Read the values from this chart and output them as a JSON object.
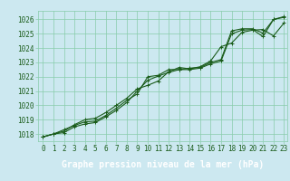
{
  "title": "Graphe pression niveau de la mer (hPa)",
  "background_color": "#cce8f0",
  "plot_bg_color": "#cce8f0",
  "grid_color": "#88ccaa",
  "line_color": "#1a5c1a",
  "title_bg_color": "#2a6b2a",
  "title_text_color": "#ffffff",
  "x_min": -0.5,
  "x_max": 23.3,
  "y_min": 1017.5,
  "y_max": 1026.6,
  "yticks": [
    1018,
    1019,
    1020,
    1021,
    1022,
    1023,
    1024,
    1025,
    1026
  ],
  "xticks": [
    0,
    1,
    2,
    3,
    4,
    5,
    6,
    7,
    8,
    9,
    10,
    11,
    12,
    13,
    14,
    15,
    16,
    17,
    18,
    19,
    20,
    21,
    22,
    23
  ],
  "series1": [
    1017.8,
    1018.0,
    1018.3,
    1018.6,
    1018.85,
    1018.9,
    1019.3,
    1019.8,
    1020.35,
    1020.8,
    1022.0,
    1022.1,
    1022.5,
    1022.5,
    1022.6,
    1022.65,
    1023.0,
    1023.2,
    1025.2,
    1025.35,
    1025.35,
    1025.05,
    1026.0,
    1026.15
  ],
  "series2": [
    1017.8,
    1018.0,
    1018.2,
    1018.65,
    1019.0,
    1019.1,
    1019.5,
    1020.0,
    1020.5,
    1021.15,
    1021.4,
    1021.7,
    1022.35,
    1022.65,
    1022.55,
    1022.7,
    1023.1,
    1024.1,
    1024.35,
    1025.1,
    1025.25,
    1025.3,
    1024.85,
    1025.75
  ],
  "series3": [
    1017.8,
    1018.0,
    1018.1,
    1018.5,
    1018.7,
    1018.8,
    1019.2,
    1019.65,
    1020.2,
    1021.0,
    1021.75,
    1022.05,
    1022.3,
    1022.5,
    1022.5,
    1022.6,
    1022.9,
    1023.1,
    1025.0,
    1025.25,
    1025.3,
    1024.8,
    1026.0,
    1026.2
  ],
  "marker": "+",
  "marker_size": 3,
  "linewidth": 0.8,
  "tick_fontsize": 5.5,
  "title_fontsize": 7.0,
  "ytick_fontsize": 5.5
}
